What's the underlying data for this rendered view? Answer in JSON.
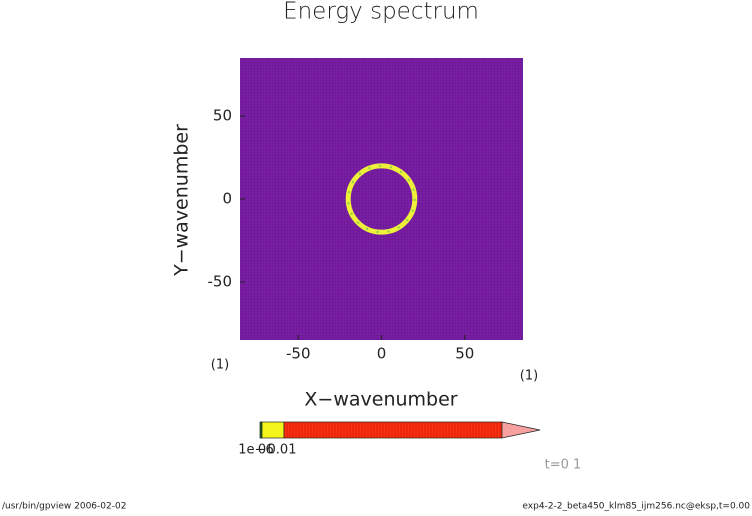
{
  "chart_data": {
    "type": "heatmap",
    "title": "Energy spectrum",
    "x_label": "X−wavenumber",
    "y_label": "Y−wavenumber",
    "xlim": [
      -85,
      85
    ],
    "ylim": [
      -85,
      85
    ],
    "xticks": [
      -50,
      0,
      50
    ],
    "yticks": [
      -50,
      0,
      50
    ],
    "x_unit": "(1)",
    "y_unit": "(1)",
    "background_color": "#7a1ea6",
    "ring": {
      "center": [
        0,
        0
      ],
      "radius": 20,
      "color": "#eef03a"
    },
    "colorbar": {
      "labels": [
        "1e−6",
        "0",
        "0.01"
      ],
      "colors": [
        "#1a6e1a",
        "#f5f51e",
        "#ff3010",
        "#f7a0a0"
      ]
    },
    "time_label": "t=0 1",
    "footer_left": "/usr/bin/gpview  2006-02-02",
    "footer_right": "exp4-2-2_beta450_klm85_ijm256.nc@eksp,t=0.00"
  }
}
